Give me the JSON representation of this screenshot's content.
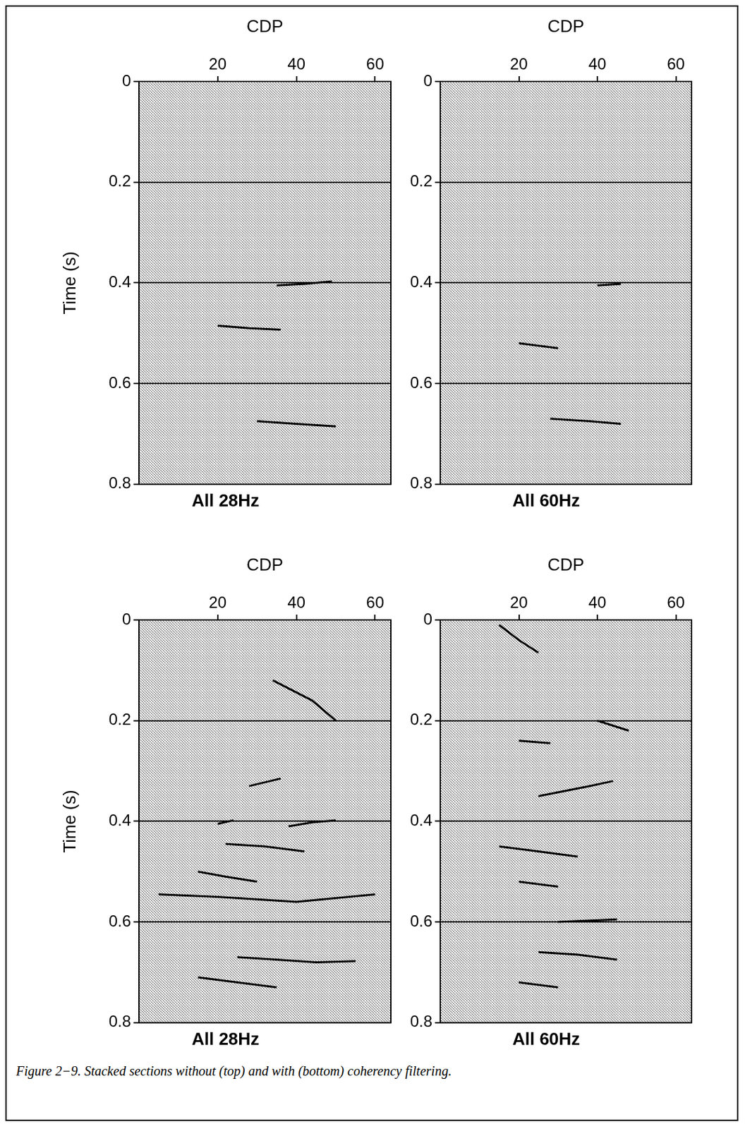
{
  "caption": "Figure 2−9. Stacked sections without (top) and with (bottom) coherency filtering.",
  "chart_data": [
    {
      "type": "line",
      "title": "All 28Hz",
      "x_label": "CDP",
      "y_label": "Time (s)",
      "xlim": [
        0,
        64
      ],
      "xticks": [
        20,
        40,
        60
      ],
      "ylim": [
        0.8,
        0
      ],
      "yticks": [
        0,
        0.2,
        0.4,
        0.6,
        0.8
      ],
      "grid": true,
      "color": "#000000",
      "series": [
        {
          "x": [
            35,
            42,
            49
          ],
          "values": [
            0.405,
            0.402,
            0.397
          ]
        },
        {
          "x": [
            20,
            28,
            36
          ],
          "values": [
            0.485,
            0.49,
            0.493
          ]
        },
        {
          "x": [
            30,
            40,
            50
          ],
          "values": [
            0.675,
            0.68,
            0.685
          ]
        }
      ]
    },
    {
      "type": "line",
      "title": "All 60Hz",
      "x_label": "CDP",
      "xlim": [
        0,
        64
      ],
      "xticks": [
        20,
        40,
        60
      ],
      "ylim": [
        0.8,
        0
      ],
      "yticks": [
        0,
        0.2,
        0.4,
        0.6,
        0.8
      ],
      "grid": true,
      "color": "#000000",
      "series": [
        {
          "x": [
            40,
            46
          ],
          "values": [
            0.405,
            0.402
          ]
        },
        {
          "x": [
            20,
            30
          ],
          "values": [
            0.52,
            0.53
          ]
        },
        {
          "x": [
            28,
            38,
            46
          ],
          "values": [
            0.67,
            0.675,
            0.68
          ]
        }
      ]
    },
    {
      "type": "line",
      "title": "All 28Hz",
      "x_label": "CDP",
      "y_label": "Time (s)",
      "xlim": [
        0,
        64
      ],
      "xticks": [
        20,
        40,
        60
      ],
      "ylim": [
        0.8,
        0
      ],
      "yticks": [
        0,
        0.2,
        0.4,
        0.6,
        0.8
      ],
      "grid": true,
      "color": "#000000",
      "series": [
        {
          "x": [
            34,
            44,
            50
          ],
          "values": [
            0.12,
            0.16,
            0.2
          ]
        },
        {
          "x": [
            28,
            36
          ],
          "values": [
            0.33,
            0.315
          ]
        },
        {
          "x": [
            20,
            24
          ],
          "values": [
            0.405,
            0.398
          ]
        },
        {
          "x": [
            38,
            44,
            50
          ],
          "values": [
            0.41,
            0.402,
            0.398
          ]
        },
        {
          "x": [
            22,
            32,
            42
          ],
          "values": [
            0.445,
            0.45,
            0.46
          ]
        },
        {
          "x": [
            15,
            22,
            30
          ],
          "values": [
            0.5,
            0.51,
            0.52
          ]
        },
        {
          "x": [
            5,
            20,
            40,
            60
          ],
          "values": [
            0.545,
            0.55,
            0.56,
            0.545
          ]
        },
        {
          "x": [
            25,
            35,
            45,
            55
          ],
          "values": [
            0.67,
            0.675,
            0.68,
            0.678
          ]
        },
        {
          "x": [
            15,
            25,
            35
          ],
          "values": [
            0.71,
            0.72,
            0.73
          ]
        }
      ]
    },
    {
      "type": "line",
      "title": "All 60Hz",
      "x_label": "CDP",
      "xlim": [
        0,
        64
      ],
      "xticks": [
        20,
        40,
        60
      ],
      "ylim": [
        0.8,
        0
      ],
      "yticks": [
        0,
        0.2,
        0.4,
        0.6,
        0.8
      ],
      "grid": true,
      "color": "#000000",
      "series": [
        {
          "x": [
            15,
            20,
            25
          ],
          "values": [
            0.01,
            0.04,
            0.065
          ]
        },
        {
          "x": [
            40,
            48
          ],
          "values": [
            0.2,
            0.22
          ]
        },
        {
          "x": [
            20,
            28
          ],
          "values": [
            0.24,
            0.245
          ]
        },
        {
          "x": [
            25,
            38,
            44
          ],
          "values": [
            0.35,
            0.33,
            0.32
          ]
        },
        {
          "x": [
            15,
            25,
            35
          ],
          "values": [
            0.45,
            0.46,
            0.47
          ]
        },
        {
          "x": [
            20,
            30
          ],
          "values": [
            0.52,
            0.53
          ]
        },
        {
          "x": [
            30,
            45
          ],
          "values": [
            0.6,
            0.595
          ]
        },
        {
          "x": [
            25,
            35,
            45
          ],
          "values": [
            0.66,
            0.665,
            0.675
          ]
        },
        {
          "x": [
            20,
            30
          ],
          "values": [
            0.72,
            0.73
          ]
        }
      ]
    }
  ]
}
